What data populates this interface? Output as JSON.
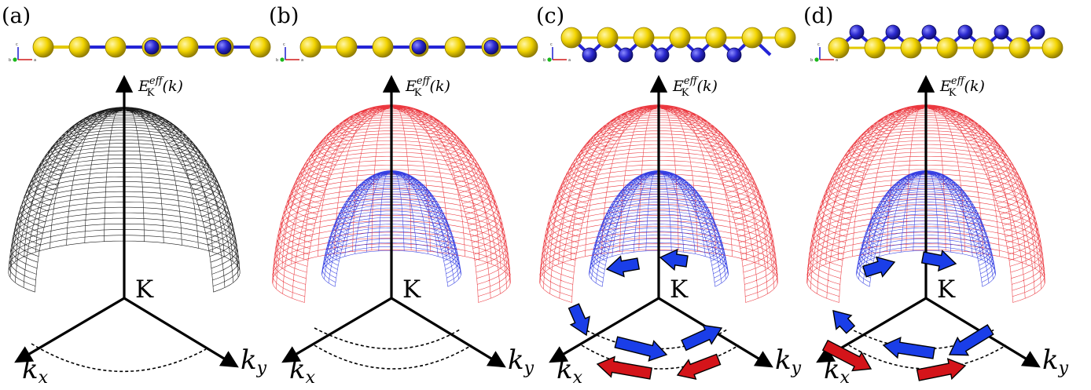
{
  "colors": {
    "single_band": "#000000",
    "outer_band": "#e8141c",
    "inner_band": "#1f2be0",
    "atom_yellow": "#f2d400",
    "atom_blue": "#2c2ad0",
    "bond_blue": "#2424d6",
    "bond_yellow": "#e2c800",
    "axis": "#000000",
    "arrow_blue": "#1a3ee8",
    "arrow_red": "#d4141a"
  },
  "axes": {
    "origin_label": "K",
    "kx_base": "k",
    "kx_sub": "x",
    "ky_base": "k",
    "ky_sub": "y",
    "energy_base": "E",
    "energy_sub": "K",
    "energy_sup": "eff",
    "energy_arg": "(k)",
    "triad": {
      "c": "c",
      "a": "a",
      "b": "b"
    }
  },
  "panels": [
    {
      "id": "a",
      "label": "(a)",
      "structure": "planar",
      "bands": [
        "single"
      ],
      "spin_arrows": "none"
    },
    {
      "id": "b",
      "label": "(b)",
      "structure": "planar",
      "bands": [
        "outer",
        "inner"
      ],
      "spin_arrows": "none"
    },
    {
      "id": "c",
      "label": "(c)",
      "structure": "buckled-down",
      "bands": [
        "outer",
        "inner"
      ],
      "spin_arrows": "clockwise-pair"
    },
    {
      "id": "d",
      "label": "(d)",
      "structure": "buckled-up",
      "bands": [
        "outer",
        "inner"
      ],
      "spin_arrows": "counter-pair"
    }
  ]
}
